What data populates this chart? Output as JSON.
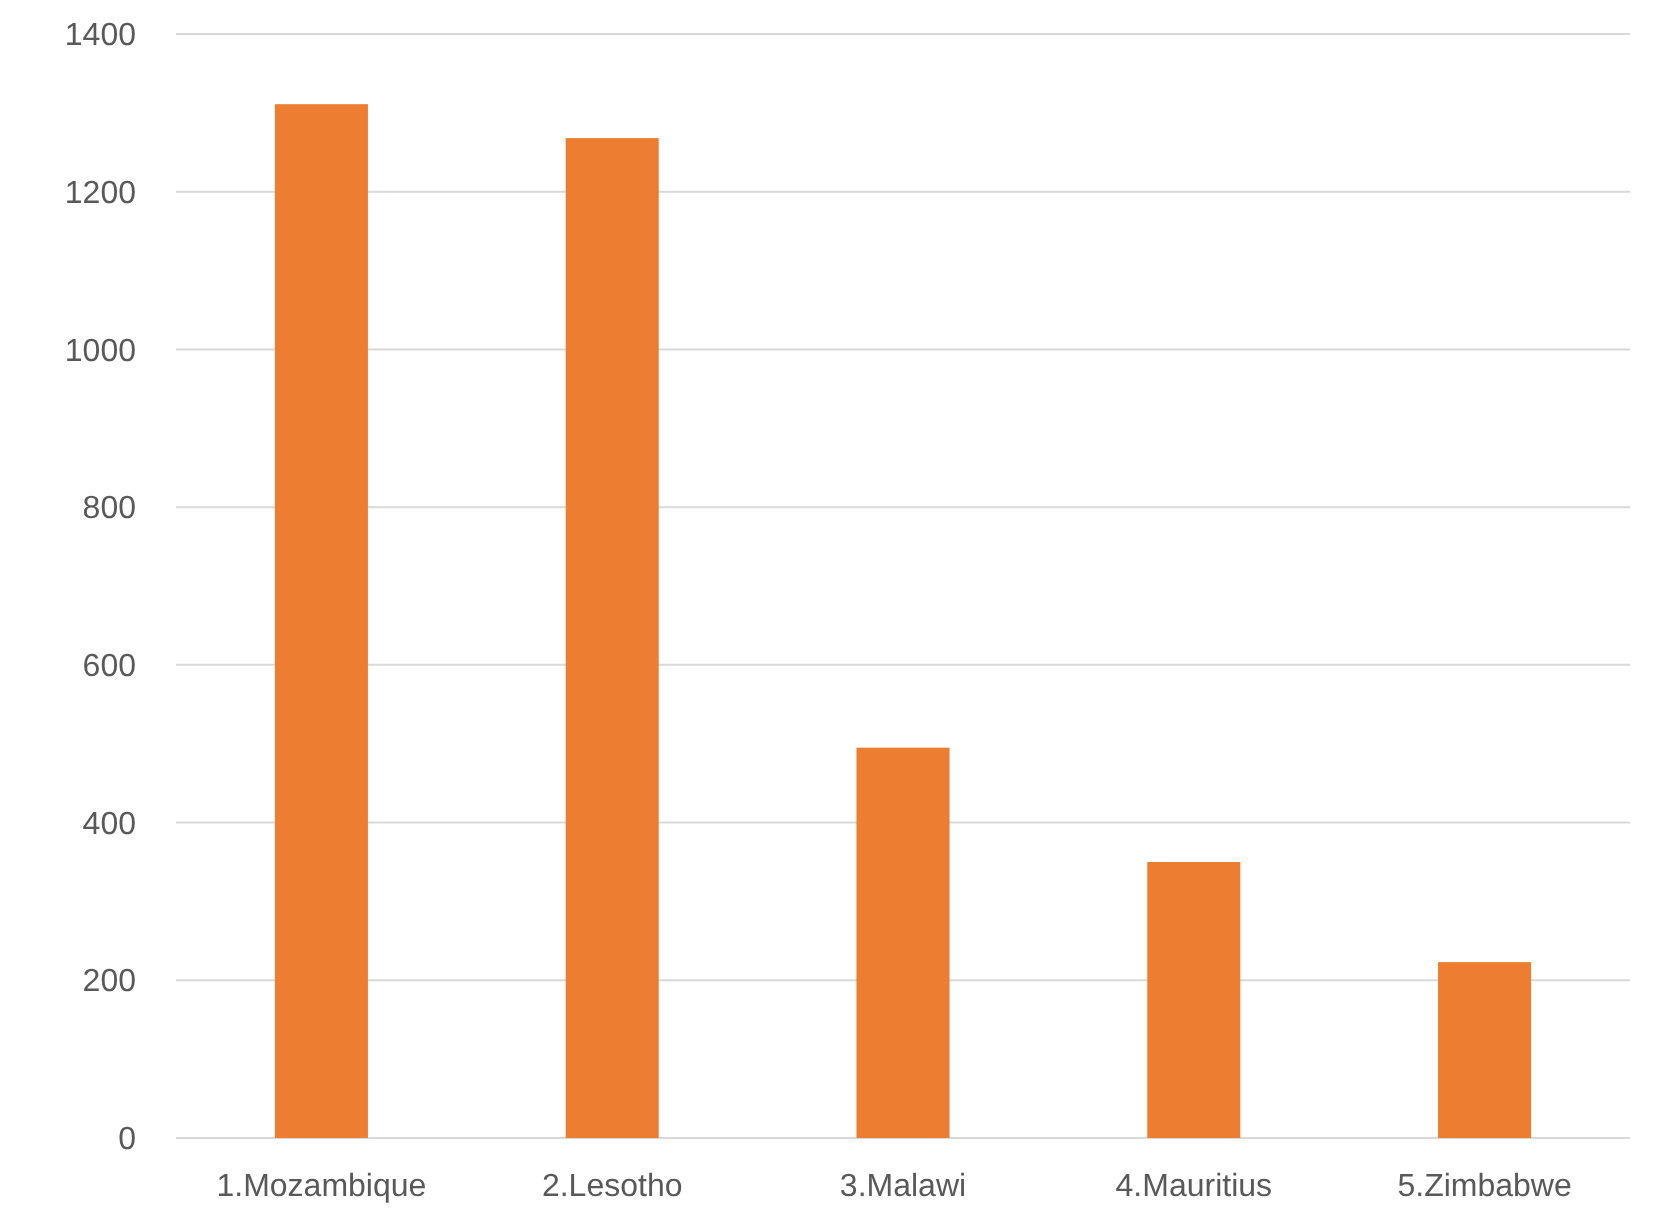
{
  "chart_data": {
    "type": "bar",
    "categories": [
      "1.Mozambique",
      "2.Lesotho",
      "3.Malawi",
      "4.Mauritius",
      "5.Zimbabwe"
    ],
    "values": [
      1311,
      1268,
      495,
      350,
      223
    ],
    "color": "#ed7d31",
    "ylim": [
      0,
      1400
    ],
    "yticks": [
      0,
      200,
      400,
      600,
      800,
      1000,
      1200,
      1400
    ],
    "grid": "y"
  }
}
